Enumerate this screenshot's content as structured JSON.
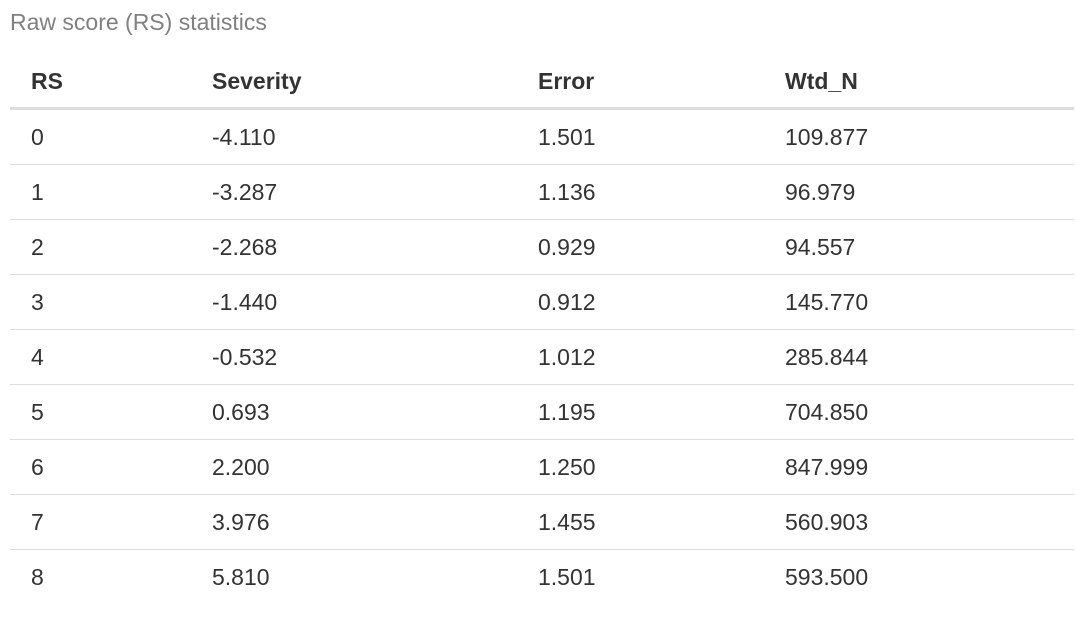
{
  "caption": "Raw score (RS) statistics",
  "table": {
    "headers": [
      "RS",
      "Severity",
      "Error",
      "Wtd_N"
    ],
    "rows": [
      [
        "0",
        "-4.110",
        "1.501",
        "109.877"
      ],
      [
        "1",
        "-3.287",
        "1.136",
        "96.979"
      ],
      [
        "2",
        "-2.268",
        "0.929",
        "94.557"
      ],
      [
        "3",
        "-1.440",
        "0.912",
        "145.770"
      ],
      [
        "4",
        "-0.532",
        "1.012",
        "285.844"
      ],
      [
        "5",
        "0.693",
        "1.195",
        "704.850"
      ],
      [
        "6",
        "2.200",
        "1.250",
        "847.999"
      ],
      [
        "7",
        "3.976",
        "1.455",
        "560.903"
      ],
      [
        "8",
        "5.810",
        "1.501",
        "593.500"
      ]
    ]
  }
}
